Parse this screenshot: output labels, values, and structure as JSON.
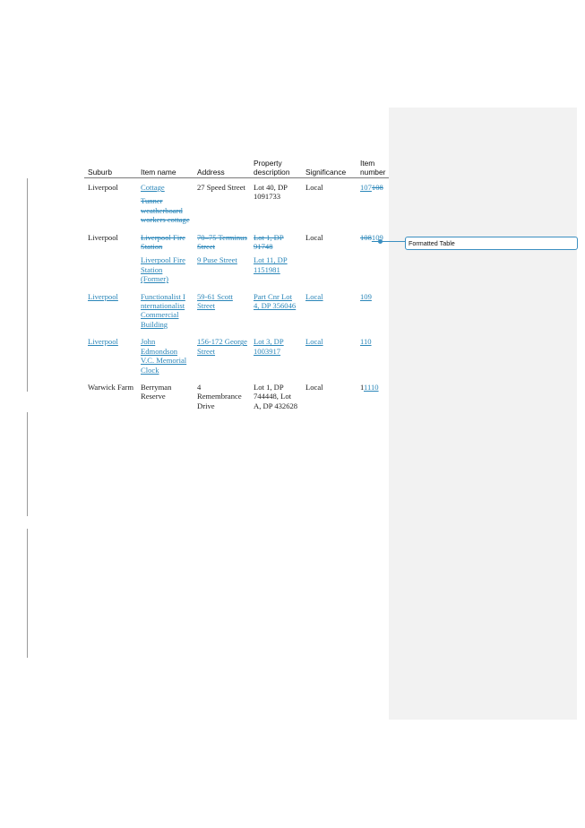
{
  "table": {
    "headers": {
      "suburb": "Suburb",
      "item_name": "Item name",
      "address": "Address",
      "property_description": "Property description",
      "significance": "Significance",
      "item_number": "Item number"
    },
    "rows": [
      {
        "suburb": "Liverpool",
        "item_name_a": "Cottage",
        "item_name_b": "Tunner weatherboard workers cottage",
        "address": "27 Speed Street",
        "property": "Lot 40, DP 1091733",
        "significance": "Local",
        "item_number_del": "107",
        "item_number_ins": "108"
      },
      {
        "suburb": "Liverpool",
        "item_name_del": "Liverpool Fire Station",
        "item_name_ins": "Liverpool Fire Station (Former)",
        "address_del": "70–75 Terminus Street",
        "address_ins": "9 Puse Street",
        "property_del": "Lot 1, DP 91748",
        "property_ins": "Lot 11, DP 1151981",
        "significance": "Local",
        "item_number_del": "108",
        "item_number_ins": "109"
      },
      {
        "suburb": "Liverpool",
        "item_name": "Functionalist I nternationalist Commercial Building",
        "address": "59-61 Scott Street",
        "property": "Part Cnr Lot 4, DP 356046",
        "significance": "Local",
        "item_number": "109"
      },
      {
        "suburb": "Liverpool",
        "item_name": "John Edmondson V.C. Memorial Clock",
        "address": "156-172 George Street",
        "property": "Lot 3, DP 1003917",
        "significance": "Local",
        "item_number": "110"
      },
      {
        "suburb": "Warwick Farm",
        "item_name": "Berryman Reserve",
        "address": "4 Remembrance Drive",
        "property": "Lot 1, DP 744448, Lot A, DP 432628",
        "significance": "Local",
        "item_number_plain": "1",
        "item_number_ins": "1110"
      }
    ]
  },
  "comment": {
    "label": "Formatted Table"
  },
  "colors": {
    "revision": "#2a86b9",
    "margin_pane": "#f2f2f2",
    "comment_border": "#3b8fc1"
  }
}
